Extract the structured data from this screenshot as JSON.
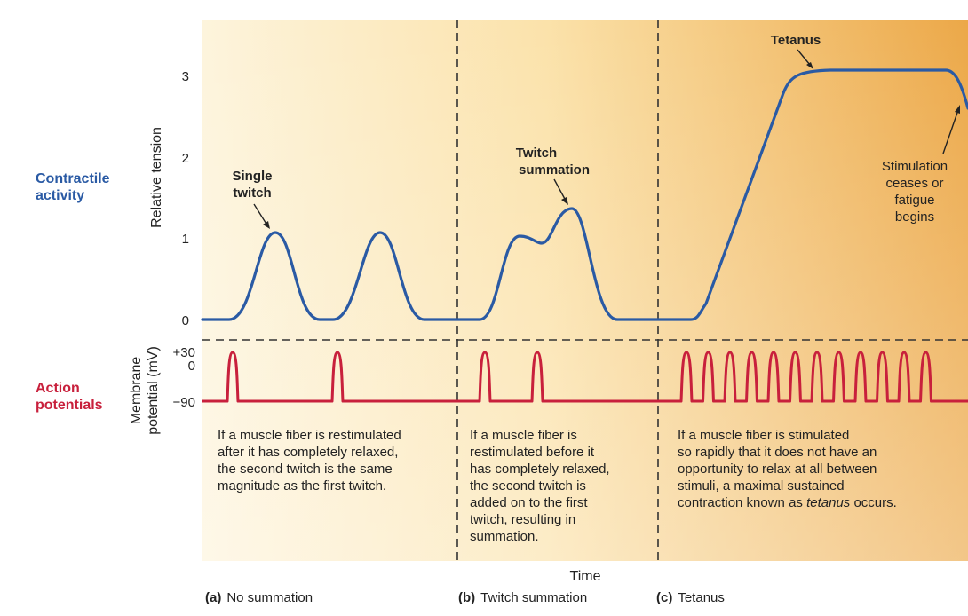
{
  "colors": {
    "contractile": "#2a5aa4",
    "action": "#c8203c",
    "bg_light": "#fdf1d4",
    "bg_dark": "#ecac4a",
    "divider": "#333333"
  },
  "side_labels": {
    "contractile": [
      "Contractile",
      "activity"
    ],
    "action": [
      "Action",
      "potentials"
    ]
  },
  "axes": {
    "tension_title": "Relative tension",
    "tension_ticks": [
      "0",
      "1",
      "2",
      "3"
    ],
    "membrane_title": [
      "Membrane",
      "potential (mV)"
    ],
    "membrane_ticks": [
      "+30",
      "0",
      "−90"
    ],
    "x_title": "Time"
  },
  "callouts": {
    "single_twitch": [
      "Single",
      "twitch"
    ],
    "twitch_summation": [
      "Twitch",
      "summation"
    ],
    "tetanus": "Tetanus",
    "stimulation": [
      "Stimulation",
      "ceases or",
      "fatigue",
      "begins"
    ]
  },
  "descriptions": {
    "a": [
      "If a muscle fiber is restimulated",
      "after it has completely relaxed,",
      "the second twitch is the same",
      "magnitude as the first twitch."
    ],
    "b": [
      "If a muscle fiber is",
      "restimulated before it",
      "has completely relaxed,",
      "the second twitch is",
      "added on to the first",
      "twitch, resulting in",
      "summation."
    ],
    "c_lines": [
      "If a muscle fiber is stimulated",
      "so rapidly that it does not have an",
      "opportunity to relax at all between",
      "stimuli, a maximal sustained"
    ],
    "c_last_prefix": "contraction known as ",
    "c_last_term": "tetanus",
    "c_last_suffix": " occurs."
  },
  "panels": [
    {
      "letter": "(a)",
      "name": "No summation"
    },
    {
      "letter": "(b)",
      "name": "Twitch summation"
    },
    {
      "letter": "(c)",
      "name": "Tetanus"
    }
  ]
}
